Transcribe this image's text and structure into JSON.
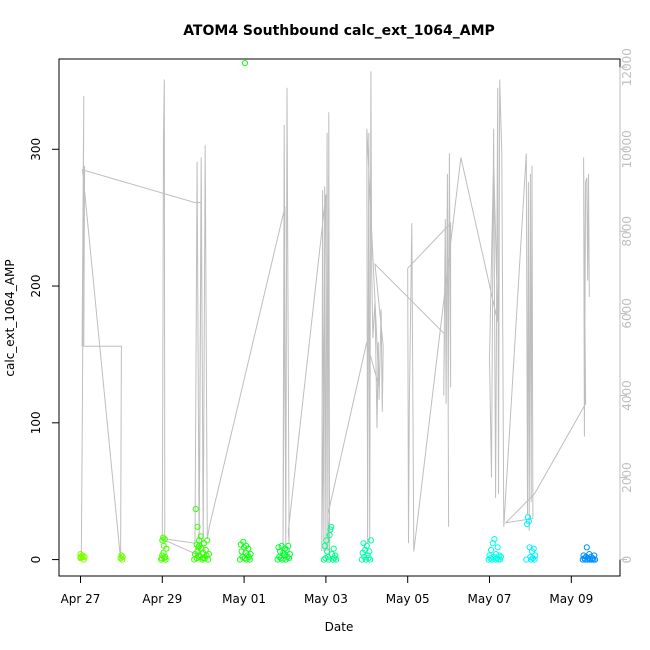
{
  "chart_data": {
    "type": "scatter",
    "title": "ATOM4 Southbound calc_ext_1064_AMP",
    "xlabel": "Date",
    "ylabel": "calc_ext_1064_AMP",
    "xlim_days": [
      0,
      13.25
    ],
    "ylim": [
      -12,
      366
    ],
    "y_ticks": [
      0,
      100,
      200,
      300
    ],
    "y_tick_labels": [
      "0",
      "100",
      "200",
      "300"
    ],
    "x_ticks": [
      0,
      2,
      4,
      6,
      8,
      10,
      12
    ],
    "x_tick_labels": [
      "Apr 27",
      "Apr 29",
      "May 01",
      "May 03",
      "May 05",
      "May 07",
      "May 09"
    ],
    "right_axis": {
      "ylim": [
        -400,
        12200
      ],
      "ticks": [
        0,
        2000,
        4000,
        6000,
        8000,
        10000,
        12000
      ],
      "tick_labels": [
        "0",
        "2000",
        "4000",
        "6000",
        "8000",
        "10000",
        "12000"
      ],
      "color": "#bebebe"
    },
    "line_series_right": [
      [
        0.02,
        0
      ],
      [
        0.05,
        4100
      ],
      [
        0.08,
        11300
      ],
      [
        0.04,
        5200
      ],
      [
        0.1,
        9600
      ],
      [
        0.08,
        5200
      ],
      [
        1.0,
        5200
      ],
      [
        0.98,
        0
      ],
      [
        0.05,
        9500
      ],
      [
        2.8,
        8700
      ],
      [
        2.95,
        8700
      ],
      [
        2.9,
        100
      ],
      [
        2.0,
        500
      ],
      [
        2.03,
        10300
      ],
      [
        2.05,
        11700
      ],
      [
        2.06,
        500
      ],
      [
        2.1,
        500
      ],
      [
        2.8,
        400
      ],
      [
        2.85,
        9700
      ],
      [
        2.9,
        300
      ],
      [
        2.95,
        9800
      ],
      [
        3.0,
        400
      ],
      [
        3.05,
        10100
      ],
      [
        3.1,
        500
      ],
      [
        3.15,
        800
      ],
      [
        5.0,
        8600
      ],
      [
        4.95,
        300
      ],
      [
        4.98,
        10600
      ],
      [
        5.02,
        200
      ],
      [
        5.05,
        11500
      ],
      [
        5.1,
        400
      ],
      [
        5.08,
        700
      ],
      [
        6.0,
        8900
      ],
      [
        5.9,
        200
      ],
      [
        5.92,
        9000
      ],
      [
        5.95,
        200
      ],
      [
        5.97,
        9100
      ],
      [
        6.0,
        200
      ],
      [
        6.03,
        10400
      ],
      [
        6.05,
        200
      ],
      [
        6.07,
        10900
      ],
      [
        6.09,
        200
      ],
      [
        6.05,
        1100
      ],
      [
        7.0,
        5300
      ],
      [
        7.3,
        4200
      ],
      [
        7.0,
        10500
      ],
      [
        7.02,
        400
      ],
      [
        7.05,
        10400
      ],
      [
        7.07,
        400
      ],
      [
        7.1,
        11900
      ],
      [
        7.12,
        7000
      ],
      [
        7.15,
        5400
      ],
      [
        7.2,
        6300
      ],
      [
        7.25,
        3200
      ],
      [
        7.28,
        5300
      ],
      [
        7.3,
        3900
      ],
      [
        7.35,
        6100
      ],
      [
        7.38,
        3600
      ],
      [
        7.4,
        5200
      ],
      [
        7.2,
        7200
      ],
      [
        8.9,
        5500
      ],
      [
        8.88,
        4000
      ],
      [
        8.92,
        8300
      ],
      [
        8.94,
        3800
      ],
      [
        8.97,
        9400
      ],
      [
        9.0,
        800
      ],
      [
        8.99,
        3600
      ],
      [
        9.02,
        9900
      ],
      [
        9.05,
        4200
      ],
      [
        9.05,
        8200
      ],
      [
        8.0,
        7100
      ],
      [
        8.02,
        400
      ],
      [
        8.04,
        3700
      ],
      [
        8.1,
        8200
      ],
      [
        8.15,
        200
      ],
      [
        9.3,
        9800
      ],
      [
        10.2,
        5800
      ],
      [
        10.1,
        9800
      ],
      [
        10.0,
        4900
      ],
      [
        10.05,
        2000
      ],
      [
        10.1,
        10500
      ],
      [
        10.15,
        1500
      ],
      [
        10.2,
        11500
      ],
      [
        10.22,
        1600
      ],
      [
        10.25,
        11700
      ],
      [
        10.3,
        9900
      ],
      [
        10.35,
        800
      ],
      [
        10.9,
        9900
      ],
      [
        10.93,
        1100
      ],
      [
        10.95,
        9200
      ],
      [
        10.97,
        700
      ],
      [
        11.0,
        9400
      ],
      [
        11.02,
        1400
      ],
      [
        11.04,
        9600
      ],
      [
        11.06,
        1000
      ],
      [
        10.4,
        900
      ],
      [
        11.1,
        1600
      ],
      [
        12.35,
        3800
      ],
      [
        12.3,
        9800
      ],
      [
        12.32,
        3000
      ],
      [
        12.35,
        9200
      ],
      [
        12.38,
        9300
      ],
      [
        12.4,
        6800
      ],
      [
        12.42,
        9400
      ],
      [
        12.44,
        6400
      ]
    ],
    "points": [
      [
        0.0,
        1,
        "#7fff00"
      ],
      [
        0.0,
        2,
        "#7fff00"
      ],
      [
        0.0,
        4,
        "#7fff00"
      ],
      [
        0.02,
        1.5,
        "#7fff00"
      ],
      [
        0.05,
        3,
        "#7fff00"
      ],
      [
        0.05,
        2,
        "#7fff00"
      ],
      [
        0.08,
        0,
        "#7fff00"
      ],
      [
        0.1,
        2,
        "#7fff00"
      ],
      [
        0.98,
        1,
        "#6fff00"
      ],
      [
        1.0,
        3,
        "#6fff00"
      ],
      [
        1.02,
        0,
        "#6fff00"
      ],
      [
        1.03,
        2,
        "#6fff00"
      ],
      [
        1.97,
        0,
        "#47ff00"
      ],
      [
        1.99,
        1,
        "#47ff00"
      ],
      [
        2.0,
        3,
        "#47ff00"
      ],
      [
        2.0,
        14,
        "#47ff00"
      ],
      [
        2.02,
        16,
        "#47ff00"
      ],
      [
        2.03,
        5,
        "#47ff00"
      ],
      [
        2.04,
        10,
        "#47ff00"
      ],
      [
        2.05,
        1,
        "#47ff00"
      ],
      [
        2.06,
        15,
        "#47ff00"
      ],
      [
        2.07,
        2,
        "#47ff00"
      ],
      [
        2.08,
        0,
        "#47ff00"
      ],
      [
        2.1,
        8,
        "#47ff00"
      ],
      [
        2.78,
        0,
        "#2fff00"
      ],
      [
        2.8,
        4,
        "#2fff00"
      ],
      [
        2.82,
        37,
        "#2fff00"
      ],
      [
        2.84,
        1,
        "#2fff00"
      ],
      [
        2.86,
        6,
        "#2fff00"
      ],
      [
        2.86,
        24,
        "#2fff00"
      ],
      [
        2.88,
        3,
        "#2fff00"
      ],
      [
        2.9,
        10,
        "#2fff00"
      ],
      [
        2.92,
        2,
        "#2fff00"
      ],
      [
        2.94,
        17,
        "#2fff00"
      ],
      [
        2.96,
        8,
        "#2fff00"
      ],
      [
        2.98,
        0,
        "#2fff00"
      ],
      [
        3.0,
        5,
        "#2fff00"
      ],
      [
        3.02,
        12,
        "#2fff00"
      ],
      [
        3.04,
        1,
        "#2fff00"
      ],
      [
        3.06,
        7,
        "#2fff00"
      ],
      [
        3.08,
        3,
        "#2fff00"
      ],
      [
        3.1,
        14,
        "#2fff00"
      ],
      [
        3.12,
        0,
        "#2fff00"
      ],
      [
        3.14,
        4,
        "#2fff00"
      ],
      [
        2.88,
        9,
        "#2fff00"
      ],
      [
        2.9,
        14,
        "#2fff00"
      ],
      [
        2.84,
        11,
        "#2fff00"
      ],
      [
        3.0,
        1,
        "#2fff00"
      ],
      [
        3.9,
        0,
        "#0fff10"
      ],
      [
        3.92,
        11,
        "#0fff10"
      ],
      [
        3.94,
        6,
        "#0fff10"
      ],
      [
        3.96,
        2,
        "#0fff10"
      ],
      [
        3.98,
        13,
        "#0fff10"
      ],
      [
        4.0,
        9,
        "#0fff10"
      ],
      [
        4.02,
        1,
        "#0fff10"
      ],
      [
        4.04,
        5,
        "#0fff10"
      ],
      [
        4.06,
        0,
        "#0fff10"
      ],
      [
        4.08,
        3,
        "#0fff10"
      ],
      [
        4.1,
        8,
        "#0fff10"
      ],
      [
        4.12,
        2,
        "#0fff10"
      ],
      [
        4.02,
        363,
        "#0fff10"
      ],
      [
        4.05,
        10,
        "#0fff10"
      ],
      [
        4.14,
        0,
        "#0fff10"
      ],
      [
        4.16,
        4,
        "#0fff10"
      ],
      [
        4.82,
        0,
        "#00ff30"
      ],
      [
        4.84,
        9,
        "#00ff30"
      ],
      [
        4.86,
        2,
        "#00ff30"
      ],
      [
        4.88,
        6,
        "#00ff30"
      ],
      [
        4.9,
        1,
        "#00ff30"
      ],
      [
        4.92,
        10,
        "#00ff30"
      ],
      [
        4.94,
        0,
        "#00ff30"
      ],
      [
        4.96,
        5,
        "#00ff30"
      ],
      [
        4.98,
        3,
        "#00ff30"
      ],
      [
        5.0,
        8,
        "#00ff30"
      ],
      [
        5.02,
        0,
        "#00ff30"
      ],
      [
        5.04,
        7,
        "#00ff30"
      ],
      [
        5.06,
        2,
        "#00ff30"
      ],
      [
        5.08,
        10,
        "#00ff30"
      ],
      [
        5.1,
        1,
        "#00ff30"
      ],
      [
        5.12,
        4,
        "#00ff30"
      ],
      [
        5.95,
        0,
        "#00ff88"
      ],
      [
        5.97,
        10,
        "#00ff88"
      ],
      [
        5.99,
        1,
        "#00ff88"
      ],
      [
        6.01,
        14,
        "#00ff88"
      ],
      [
        6.03,
        6,
        "#00ff88"
      ],
      [
        6.05,
        2,
        "#00ff88"
      ],
      [
        6.07,
        0,
        "#00ff88"
      ],
      [
        6.09,
        18,
        "#00ff88"
      ],
      [
        6.11,
        22,
        "#00ff88"
      ],
      [
        6.13,
        24,
        "#00ff88"
      ],
      [
        6.15,
        4,
        "#00ff88"
      ],
      [
        6.17,
        0,
        "#00ff88"
      ],
      [
        6.19,
        8,
        "#00ff88"
      ],
      [
        6.21,
        1,
        "#00ff88"
      ],
      [
        6.23,
        3,
        "#00ff88"
      ],
      [
        6.25,
        0,
        "#00ff88"
      ],
      [
        6.88,
        0,
        "#00ffa8"
      ],
      [
        6.9,
        5,
        "#00ffa8"
      ],
      [
        6.92,
        12,
        "#00ffa8"
      ],
      [
        6.94,
        2,
        "#00ffa8"
      ],
      [
        6.96,
        7,
        "#00ffa8"
      ],
      [
        6.98,
        0,
        "#00ffa8"
      ],
      [
        7.0,
        10,
        "#00ffa8"
      ],
      [
        7.02,
        3,
        "#00ffa8"
      ],
      [
        7.04,
        1,
        "#00ffa8"
      ],
      [
        7.06,
        6,
        "#00ffa8"
      ],
      [
        7.08,
        0,
        "#00ffa8"
      ],
      [
        7.1,
        14,
        "#00ffa8"
      ],
      [
        9.98,
        0,
        "#00ffe8"
      ],
      [
        10.0,
        3,
        "#00ffe8"
      ],
      [
        10.02,
        1,
        "#00ffe8"
      ],
      [
        10.04,
        7,
        "#00ffe8"
      ],
      [
        10.06,
        0,
        "#00ffe8"
      ],
      [
        10.08,
        12,
        "#00ffe8"
      ],
      [
        10.1,
        2,
        "#00ffe8"
      ],
      [
        10.12,
        15,
        "#00ffe8"
      ],
      [
        10.14,
        0,
        "#00ffe8"
      ],
      [
        10.16,
        4,
        "#00ffe8"
      ],
      [
        10.18,
        1,
        "#00ffe8"
      ],
      [
        10.2,
        9,
        "#00ffe8"
      ],
      [
        10.22,
        0,
        "#00ffe8"
      ],
      [
        10.24,
        3,
        "#00ffe8"
      ],
      [
        10.26,
        0,
        "#00ffe8"
      ],
      [
        10.28,
        2,
        "#00ffe8"
      ],
      [
        10.9,
        0,
        "#00f0ff"
      ],
      [
        10.92,
        26,
        "#00f0ff"
      ],
      [
        10.94,
        31,
        "#00f0ff"
      ],
      [
        10.96,
        28,
        "#00f0ff"
      ],
      [
        10.98,
        9,
        "#00f0ff"
      ],
      [
        11.0,
        2,
        "#00f0ff"
      ],
      [
        11.02,
        0,
        "#00f0ff"
      ],
      [
        11.04,
        6,
        "#00f0ff"
      ],
      [
        11.06,
        1,
        "#00f0ff"
      ],
      [
        11.08,
        8,
        "#00f0ff"
      ],
      [
        11.1,
        0,
        "#00f0ff"
      ],
      [
        11.12,
        3,
        "#00f0ff"
      ],
      [
        12.28,
        0,
        "#0090ff"
      ],
      [
        12.3,
        3,
        "#0090ff"
      ],
      [
        12.32,
        1,
        "#0090ff"
      ],
      [
        12.34,
        0,
        "#0090ff"
      ],
      [
        12.36,
        2,
        "#0090ff"
      ],
      [
        12.38,
        9,
        "#0090ff"
      ],
      [
        12.4,
        0,
        "#0090ff"
      ],
      [
        12.42,
        1,
        "#0090ff"
      ],
      [
        12.44,
        4,
        "#0090ff"
      ],
      [
        12.46,
        0,
        "#0090ff"
      ],
      [
        12.48,
        2,
        "#0090ff"
      ],
      [
        12.5,
        0,
        "#0090ff"
      ],
      [
        12.52,
        1,
        "#0090ff"
      ],
      [
        12.54,
        0,
        "#0090ff"
      ],
      [
        12.56,
        3,
        "#0090ff"
      ],
      [
        12.58,
        0,
        "#0090ff"
      ]
    ]
  }
}
